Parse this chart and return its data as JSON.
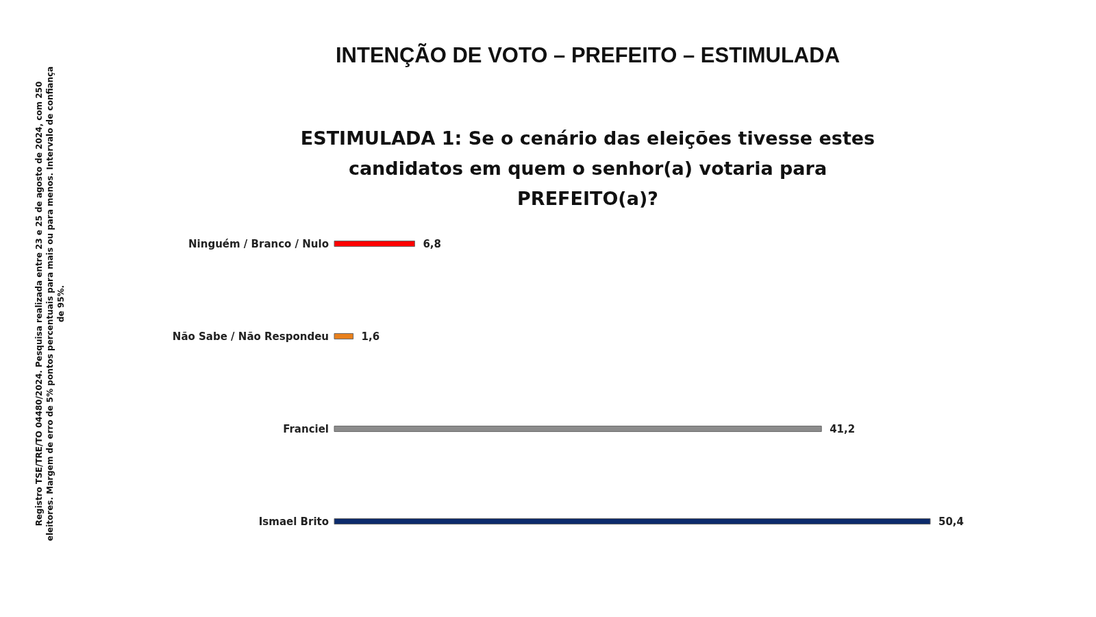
{
  "chart_data": {
    "type": "bar",
    "orientation": "horizontal",
    "title": "INTENÇÃO DE VOTO – PREFEITO – ESTIMULADA",
    "subtitle": "ESTIMULADA 1: Se o cenário das eleições tivesse estes candidatos em quem o senhor(a) votaria para PREFEITO(a)?",
    "categories": [
      "Ninguém / Branco / Nulo",
      "Não Sabe / Não Respondeu",
      "Franciel",
      "Ismael Brito"
    ],
    "values": [
      6.8,
      1.6,
      41.2,
      50.4
    ],
    "colors": [
      "#ff0000",
      "#e8801c",
      "#8c8c8c",
      "#0c2a6b"
    ],
    "value_labels": [
      "6,8",
      "1,6",
      "41,2",
      "50,4"
    ],
    "annotations": [
      "Registro TSE/TRE/TO 04480/2024. Pesquisa realizada entre 23 e 25 de agosto de 2024, com 250 eleitores. Margem de erro de 5% pontos percentuais para mais ou para menos. Intervalo de confiança de 95%."
    ]
  }
}
